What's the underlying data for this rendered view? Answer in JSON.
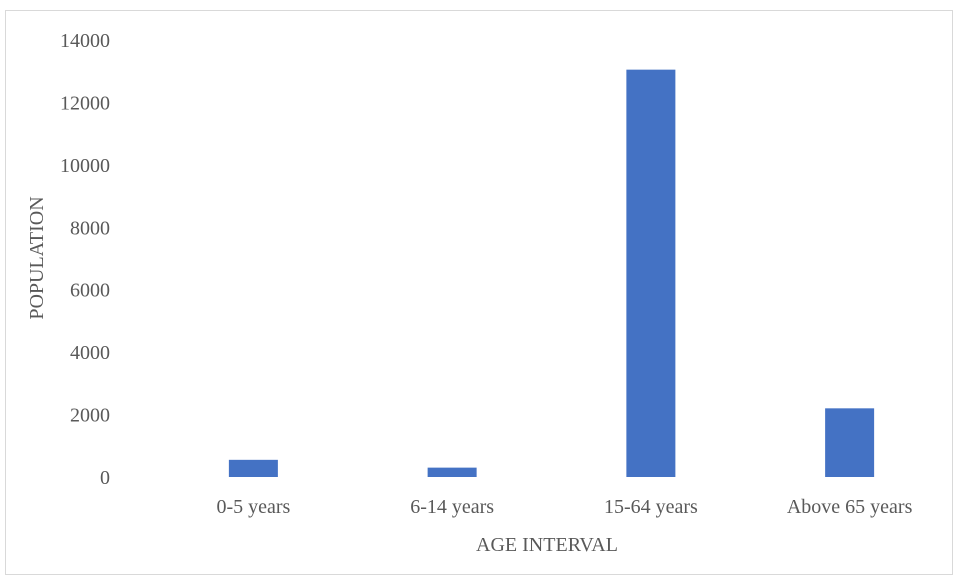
{
  "chart_data": {
    "type": "bar",
    "title": "",
    "xlabel": "AGE INTERVAL",
    "ylabel": "POPULATION",
    "categories": [
      "0-5 years",
      "6-14 years",
      "15-64 years",
      "Above 65 years"
    ],
    "values": [
      550,
      300,
      13050,
      2200
    ],
    "ylim": [
      0,
      14000
    ],
    "yticks": [
      0,
      2000,
      4000,
      6000,
      8000,
      10000,
      12000,
      14000
    ],
    "grid": false,
    "legend": "none",
    "bar_color": "#4472c4"
  }
}
